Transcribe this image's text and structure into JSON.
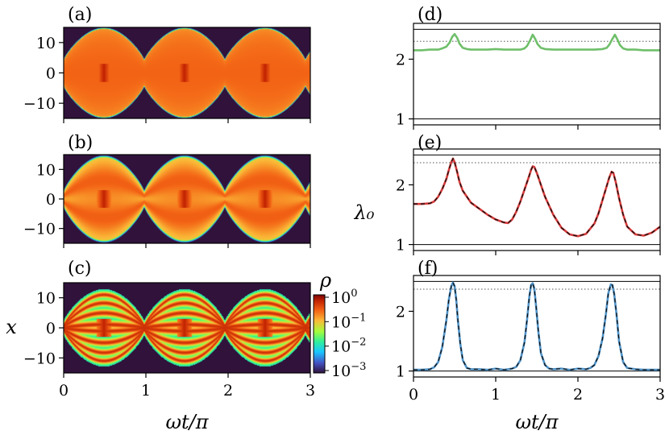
{
  "chart_data": [
    {
      "panel": "a",
      "type": "heatmap",
      "label": "(a)",
      "xlim": [
        0,
        3
      ],
      "ylim": [
        -15,
        15
      ],
      "yticks": [
        10,
        0,
        -10
      ],
      "ytick_labels": [
        "10",
        "0",
        "−10"
      ],
      "xticks": [
        0,
        1,
        2,
        3
      ],
      "xtick_labels": [
        "0",
        "1",
        "2",
        "3"
      ],
      "envelope": {
        "amplitude_max": 14.5,
        "amplitude_min": 4,
        "period": 0.98,
        "phase": 0.49,
        "profile": "broad"
      }
    },
    {
      "panel": "b",
      "type": "heatmap",
      "label": "(b)",
      "xlim": [
        0,
        3
      ],
      "ylim": [
        -15,
        15
      ],
      "yticks": [
        10,
        0,
        -10
      ],
      "ytick_labels": [
        "10",
        "0",
        "−10"
      ],
      "xticks": [
        0,
        1,
        2,
        3
      ],
      "xtick_labels": [
        "0",
        "1",
        "2",
        "3"
      ],
      "envelope": {
        "amplitude_max": 14,
        "amplitude_min": 2,
        "period": 0.98,
        "phase": 0.49,
        "profile": "few-mode"
      }
    },
    {
      "panel": "c",
      "type": "heatmap",
      "label": "(c)",
      "xlim": [
        0,
        3
      ],
      "ylim": [
        -15,
        15
      ],
      "yticks": [
        10,
        0,
        -10
      ],
      "ytick_labels": [
        "10",
        "0",
        "−10"
      ],
      "xticks": [
        0,
        1,
        2,
        3
      ],
      "xtick_labels": [
        "0",
        "1",
        "2",
        "3"
      ],
      "xlabel": "ωt/π",
      "ylabel": "x",
      "envelope": {
        "amplitude_max": 11,
        "amplitude_min": 0.5,
        "period": 0.98,
        "phase": 0.49,
        "profile": "modes"
      },
      "colorbar": {
        "label": "ρ",
        "scale": "log",
        "range": [
          0.001,
          1
        ],
        "base": "10",
        "exponents": [
          "0",
          "−1",
          "−2",
          "−3"
        ]
      }
    },
    {
      "panel": "d",
      "type": "line",
      "label": "(d)",
      "xlim": [
        0,
        3
      ],
      "ylim": [
        0.9,
        2.6
      ],
      "yticks": [
        1,
        2
      ],
      "ytick_labels": [
        "1",
        "2"
      ],
      "xticks": [
        0,
        1,
        2,
        3
      ],
      "xtick_labels": [
        "0",
        "1",
        "2",
        "3"
      ],
      "hline_solid": 2.5,
      "hline_dotted": 2.3,
      "series": [
        {
          "color": "#6fbf6a",
          "x": [
            0,
            0.1,
            0.2,
            0.3,
            0.35,
            0.4,
            0.44,
            0.47,
            0.5,
            0.53,
            0.56,
            0.6,
            0.65,
            0.7,
            0.8,
            0.9,
            1.0,
            1.1,
            1.2,
            1.3,
            1.35,
            1.38,
            1.42,
            1.45,
            1.48,
            1.51,
            1.55,
            1.6,
            1.7,
            1.8,
            1.9,
            2.0,
            2.1,
            2.2,
            2.3,
            2.35,
            2.38,
            2.42,
            2.45,
            2.48,
            2.51,
            2.55,
            2.6,
            2.7,
            2.8,
            2.9,
            3.0
          ],
          "y": [
            2.15,
            2.15,
            2.16,
            2.16,
            2.18,
            2.21,
            2.28,
            2.37,
            2.42,
            2.36,
            2.26,
            2.19,
            2.17,
            2.16,
            2.16,
            2.16,
            2.17,
            2.16,
            2.16,
            2.16,
            2.18,
            2.22,
            2.32,
            2.41,
            2.34,
            2.25,
            2.19,
            2.17,
            2.16,
            2.16,
            2.16,
            2.16,
            2.16,
            2.16,
            2.17,
            2.19,
            2.24,
            2.34,
            2.41,
            2.33,
            2.24,
            2.18,
            2.16,
            2.16,
            2.15,
            2.15,
            2.15
          ]
        }
      ]
    },
    {
      "panel": "e",
      "type": "line",
      "label": "(e)",
      "xlim": [
        0,
        3
      ],
      "ylim": [
        0.9,
        2.6
      ],
      "yticks": [
        1,
        2
      ],
      "ytick_labels": [
        "1",
        "2"
      ],
      "xticks": [
        0,
        1,
        2,
        3
      ],
      "xtick_labels": [
        "0",
        "1",
        "2",
        "3"
      ],
      "ylabel": "λ₀",
      "hline_solid": 2.5,
      "hline_dotted": 2.37,
      "series": [
        {
          "color": "#d63a3a",
          "dashed_overlay": true,
          "x": [
            0,
            0.1,
            0.2,
            0.25,
            0.3,
            0.35,
            0.4,
            0.43,
            0.46,
            0.48,
            0.5,
            0.53,
            0.56,
            0.6,
            0.7,
            0.8,
            0.9,
            1.0,
            1.1,
            1.15,
            1.2,
            1.25,
            1.3,
            1.35,
            1.4,
            1.43,
            1.45,
            1.47,
            1.5,
            1.55,
            1.6,
            1.7,
            1.8,
            1.9,
            2.0,
            2.1,
            2.2,
            2.25,
            2.3,
            2.35,
            2.38,
            2.41,
            2.43,
            2.46,
            2.5,
            2.55,
            2.6,
            2.7,
            2.8,
            2.9,
            3.0
          ],
          "y": [
            1.68,
            1.68,
            1.69,
            1.72,
            1.8,
            1.93,
            2.1,
            2.25,
            2.38,
            2.44,
            2.38,
            2.22,
            2.05,
            1.9,
            1.7,
            1.6,
            1.5,
            1.42,
            1.37,
            1.36,
            1.42,
            1.55,
            1.72,
            1.92,
            2.12,
            2.25,
            2.31,
            2.3,
            2.2,
            2.0,
            1.8,
            1.5,
            1.28,
            1.17,
            1.14,
            1.18,
            1.35,
            1.52,
            1.75,
            1.98,
            2.12,
            2.22,
            2.2,
            2.05,
            1.78,
            1.5,
            1.3,
            1.17,
            1.15,
            1.2,
            1.3
          ]
        }
      ]
    },
    {
      "panel": "f",
      "type": "line",
      "label": "(f)",
      "xlim": [
        0,
        3
      ],
      "ylim": [
        0.9,
        2.6
      ],
      "yticks": [
        1,
        2
      ],
      "ytick_labels": [
        "1",
        "2"
      ],
      "xticks": [
        0,
        1,
        2,
        3
      ],
      "xtick_labels": [
        "0",
        "1",
        "2",
        "3"
      ],
      "xlabel": "ωt/π",
      "hline_solid": 2.5,
      "hline_dotted": 2.37,
      "series": [
        {
          "color": "#4f93c8",
          "dashed_overlay": true,
          "x": [
            0,
            0.1,
            0.2,
            0.25,
            0.3,
            0.35,
            0.4,
            0.43,
            0.46,
            0.48,
            0.5,
            0.52,
            0.54,
            0.57,
            0.6,
            0.65,
            0.7,
            0.8,
            0.9,
            1.0,
            1.1,
            1.2,
            1.25,
            1.3,
            1.35,
            1.38,
            1.41,
            1.43,
            1.45,
            1.47,
            1.49,
            1.52,
            1.55,
            1.6,
            1.65,
            1.7,
            1.8,
            1.9,
            2.0,
            2.1,
            2.15,
            2.2,
            2.25,
            2.3,
            2.34,
            2.37,
            2.4,
            2.42,
            2.44,
            2.47,
            2.5,
            2.55,
            2.6,
            2.7,
            2.8,
            2.9,
            3.0
          ],
          "y": [
            1.02,
            1.02,
            1.03,
            1.06,
            1.15,
            1.4,
            1.85,
            2.2,
            2.42,
            2.48,
            2.42,
            2.2,
            1.85,
            1.45,
            1.18,
            1.05,
            1.03,
            1.03,
            1.02,
            1.04,
            1.02,
            1.04,
            1.07,
            1.18,
            1.48,
            1.85,
            2.25,
            2.44,
            2.47,
            2.38,
            2.1,
            1.65,
            1.3,
            1.1,
            1.04,
            1.03,
            1.04,
            1.02,
            1.04,
            1.03,
            1.05,
            1.1,
            1.25,
            1.55,
            1.95,
            2.3,
            2.45,
            2.44,
            2.3,
            1.95,
            1.5,
            1.15,
            1.05,
            1.03,
            1.02,
            1.02,
            1.02
          ]
        }
      ]
    }
  ]
}
